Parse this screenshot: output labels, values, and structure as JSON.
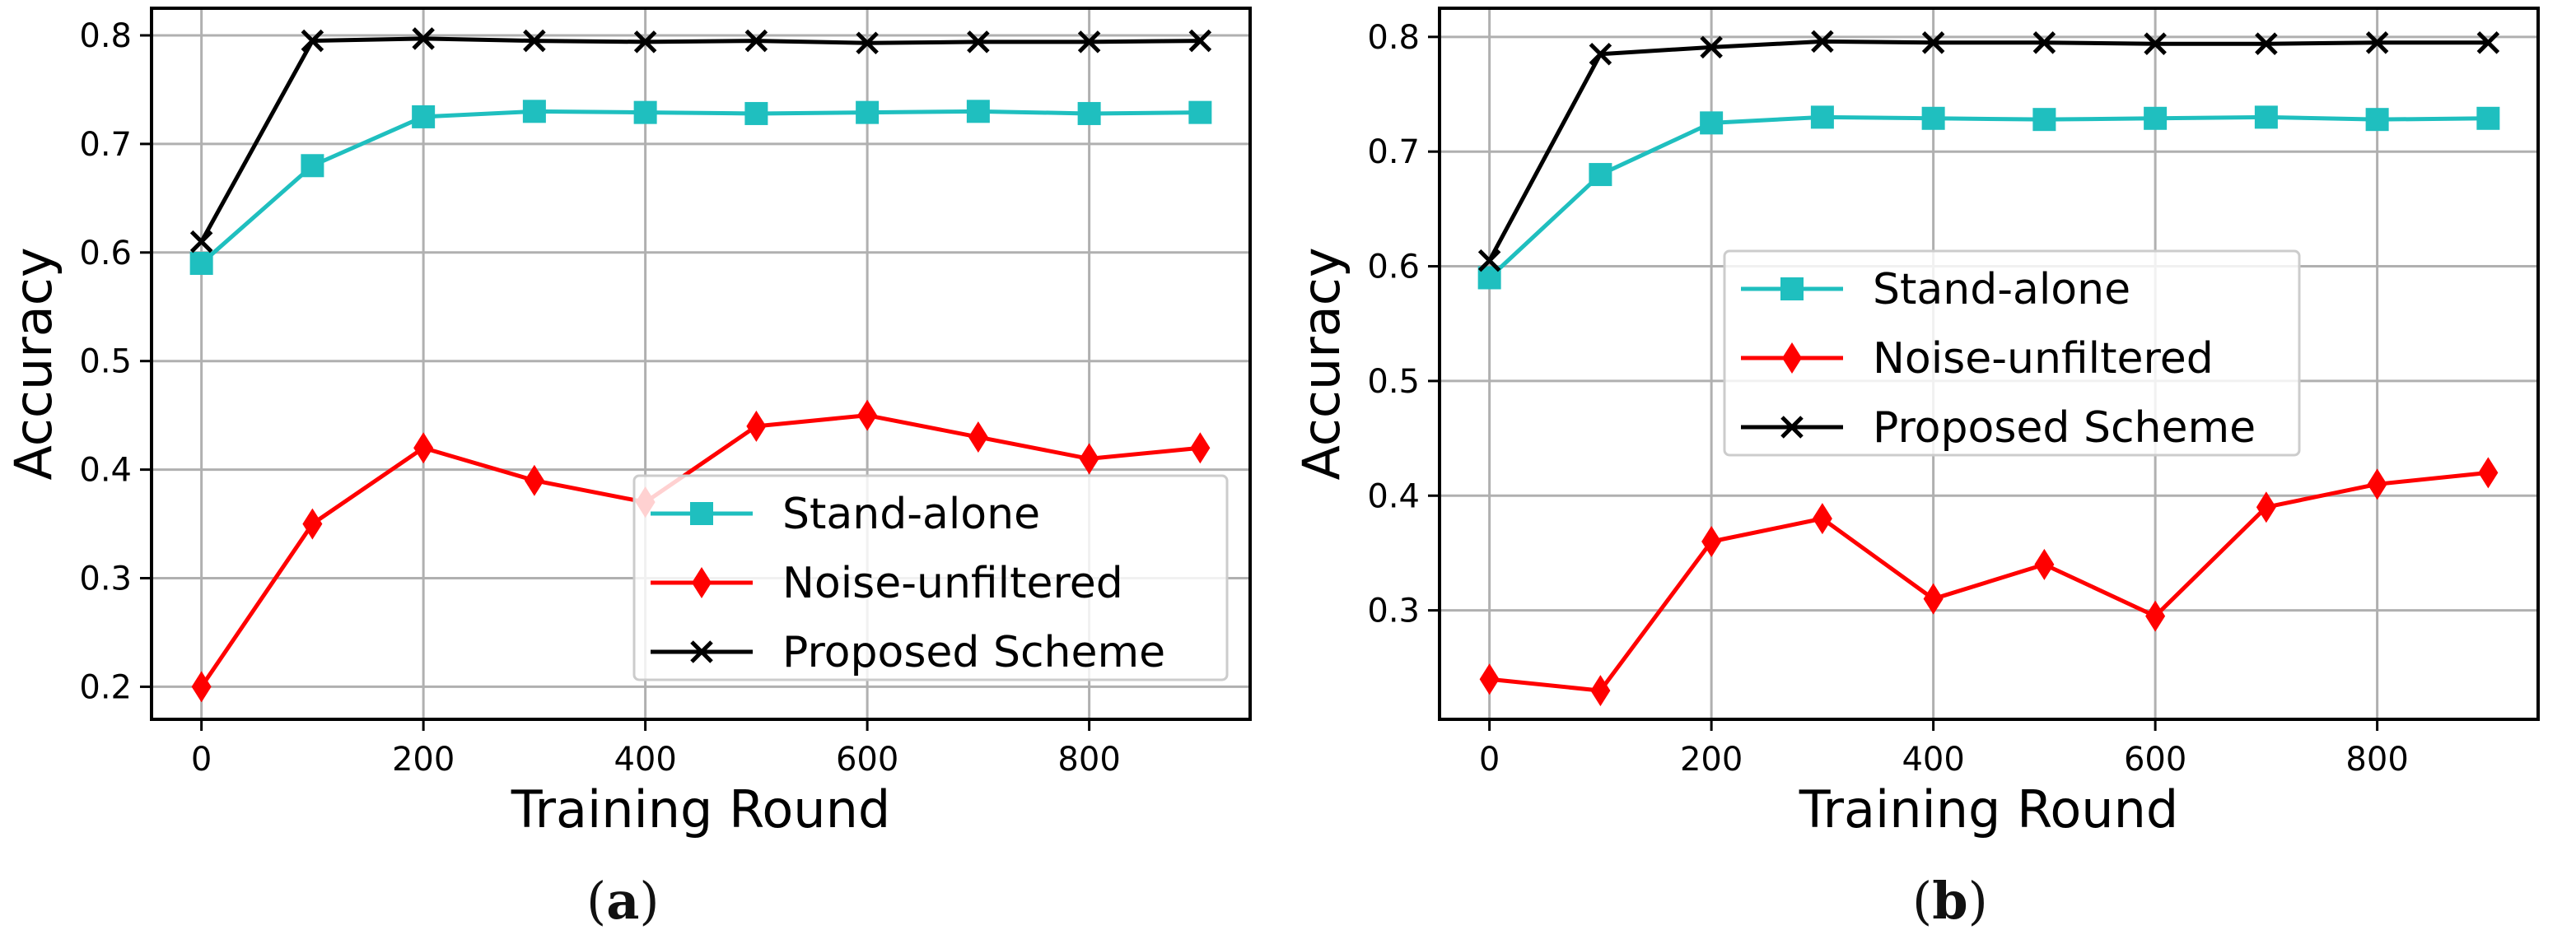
{
  "chart_data": [
    {
      "type": "line",
      "panel_label": "a",
      "title": "",
      "xlabel": "Training Round",
      "ylabel": "Accuracy",
      "xlim": [
        -45,
        945
      ],
      "ylim": [
        0.17,
        0.825
      ],
      "xticks": [
        0,
        200,
        400,
        600,
        800
      ],
      "yticks": [
        0.2,
        0.3,
        0.4,
        0.5,
        0.6,
        0.7,
        0.8
      ],
      "ytick_labels": [
        "0.2",
        "0.3",
        "0.4",
        "0.5",
        "0.6",
        "0.7",
        "0.8"
      ],
      "grid": true,
      "legend_position": "lower-right",
      "x": [
        0,
        100,
        200,
        300,
        400,
        500,
        600,
        700,
        800,
        900
      ],
      "series": [
        {
          "name": "Stand-alone",
          "color": "#1fbfbf",
          "marker": "square",
          "values": [
            0.59,
            0.68,
            0.725,
            0.73,
            0.729,
            0.728,
            0.729,
            0.73,
            0.728,
            0.729
          ]
        },
        {
          "name": "Noise-unfiltered",
          "color": "#ff0000",
          "marker": "diamond",
          "values": [
            0.2,
            0.35,
            0.42,
            0.39,
            0.37,
            0.44,
            0.45,
            0.43,
            0.41,
            0.42
          ]
        },
        {
          "name": "Proposed Scheme",
          "color": "#000000",
          "marker": "x",
          "values": [
            0.61,
            0.795,
            0.797,
            0.795,
            0.794,
            0.795,
            0.793,
            0.794,
            0.794,
            0.795
          ]
        }
      ]
    },
    {
      "type": "line",
      "panel_label": "b",
      "title": "",
      "xlabel": "Training Round",
      "ylabel": "Accuracy",
      "xlim": [
        -45,
        945
      ],
      "ylim": [
        0.205,
        0.825
      ],
      "xticks": [
        0,
        200,
        400,
        600,
        800
      ],
      "yticks": [
        0.3,
        0.4,
        0.5,
        0.6,
        0.7,
        0.8
      ],
      "ytick_labels": [
        "0.3",
        "0.4",
        "0.5",
        "0.6",
        "0.7",
        "0.8"
      ],
      "grid": true,
      "legend_position": "center",
      "x": [
        0,
        100,
        200,
        300,
        400,
        500,
        600,
        700,
        800,
        900
      ],
      "series": [
        {
          "name": "Stand-alone",
          "color": "#1fbfbf",
          "marker": "square",
          "values": [
            0.59,
            0.68,
            0.725,
            0.73,
            0.729,
            0.728,
            0.729,
            0.73,
            0.728,
            0.729
          ]
        },
        {
          "name": "Noise-unfiltered",
          "color": "#ff0000",
          "marker": "diamond",
          "values": [
            0.24,
            0.23,
            0.36,
            0.38,
            0.31,
            0.34,
            0.295,
            0.39,
            0.41,
            0.42
          ]
        },
        {
          "name": "Proposed Scheme",
          "color": "#000000",
          "marker": "x",
          "values": [
            0.605,
            0.785,
            0.791,
            0.796,
            0.795,
            0.795,
            0.794,
            0.794,
            0.795,
            0.795
          ]
        }
      ]
    }
  ]
}
